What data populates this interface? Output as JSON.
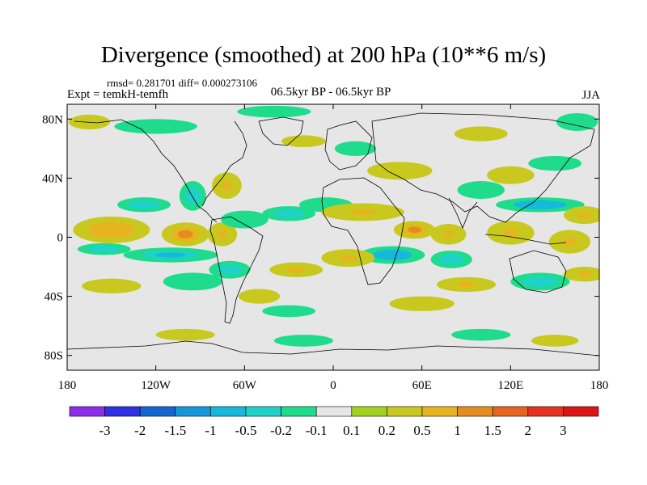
{
  "chart_data": {
    "type": "heatmap",
    "title": "Divergence (smoothed) at 200 hPa (10**6 m/s)",
    "stats_text": "rmsd= 0.281701  diff= 0.000273106",
    "experiment": "Expt = temkH-temfh",
    "period": "06.5kyr BP - 06.5kyr BP",
    "season": "JJA",
    "x_range": [
      -180,
      180
    ],
    "y_range": [
      -90,
      90
    ],
    "x_ticks": [
      {
        "value": -180,
        "label": "180"
      },
      {
        "value": -120,
        "label": "120W"
      },
      {
        "value": -60,
        "label": "60W"
      },
      {
        "value": 0,
        "label": "0"
      },
      {
        "value": 60,
        "label": "60E"
      },
      {
        "value": 120,
        "label": "120E"
      },
      {
        "value": 180,
        "label": "180"
      }
    ],
    "y_ticks": [
      {
        "value": 80,
        "label": "80N"
      },
      {
        "value": 40,
        "label": "40N"
      },
      {
        "value": 0,
        "label": "0"
      },
      {
        "value": -40,
        "label": "40S"
      },
      {
        "value": -80,
        "label": "80S"
      }
    ],
    "colorbar": {
      "levels": [
        "-3",
        "-2",
        "-1.5",
        "-1",
        "-0.5",
        "-0.2",
        "-0.1",
        "0.1",
        "0.2",
        "0.5",
        "1",
        "1.5",
        "2",
        "3"
      ],
      "colors": [
        "#8c2ee8",
        "#2f2fe6",
        "#1464d2",
        "#1496dc",
        "#14b9dc",
        "#1ed2c8",
        "#1edc8c",
        "#e6e6e6",
        "#a0d21e",
        "#c8c81e",
        "#e6b41e",
        "#e68c1e",
        "#e6641e",
        "#e6321e",
        "#dc1414"
      ]
    },
    "features": [
      {
        "lon": -150,
        "lat": 5,
        "rx": 26,
        "ry": 9,
        "value": 0.9
      },
      {
        "lon": -100,
        "lat": 2,
        "rx": 16,
        "ry": 8,
        "value": 1.2
      },
      {
        "lon": -75,
        "lat": 2,
        "rx": 10,
        "ry": 8,
        "value": 0.7
      },
      {
        "lon": -110,
        "lat": -12,
        "rx": 32,
        "ry": 5,
        "value": -0.7
      },
      {
        "lon": -155,
        "lat": -8,
        "rx": 18,
        "ry": 4,
        "value": -0.4
      },
      {
        "lon": -128,
        "lat": 22,
        "rx": 18,
        "ry": 5,
        "value": -0.4
      },
      {
        "lon": -95,
        "lat": 28,
        "rx": 9,
        "ry": 10,
        "value": -0.4
      },
      {
        "lon": -72,
        "lat": 35,
        "rx": 10,
        "ry": 9,
        "value": 0.5
      },
      {
        "lon": -120,
        "lat": 75,
        "rx": 28,
        "ry": 5,
        "value": -0.3
      },
      {
        "lon": -40,
        "lat": 85,
        "rx": 25,
        "ry": 4,
        "value": -0.3
      },
      {
        "lon": -165,
        "lat": 78,
        "rx": 14,
        "ry": 5,
        "value": 0.3
      },
      {
        "lon": -20,
        "lat": 65,
        "rx": 15,
        "ry": 4,
        "value": 0.3
      },
      {
        "lon": -60,
        "lat": 12,
        "rx": 16,
        "ry": 6,
        "value": -0.3
      },
      {
        "lon": -30,
        "lat": 16,
        "rx": 18,
        "ry": 5,
        "value": -0.4
      },
      {
        "lon": -5,
        "lat": 22,
        "rx": 18,
        "ry": 5,
        "value": -0.3
      },
      {
        "lon": 20,
        "lat": 17,
        "rx": 28,
        "ry": 6,
        "value": 0.6
      },
      {
        "lon": 55,
        "lat": 5,
        "rx": 14,
        "ry": 6,
        "value": 1.3
      },
      {
        "lon": 78,
        "lat": 2,
        "rx": 12,
        "ry": 7,
        "value": 0.7
      },
      {
        "lon": 40,
        "lat": -12,
        "rx": 22,
        "ry": 6,
        "value": -0.8
      },
      {
        "lon": 80,
        "lat": -15,
        "rx": 14,
        "ry": 6,
        "value": -0.5
      },
      {
        "lon": 10,
        "lat": -14,
        "rx": 18,
        "ry": 6,
        "value": 0.5
      },
      {
        "lon": -25,
        "lat": -22,
        "rx": 18,
        "ry": 5,
        "value": 0.5
      },
      {
        "lon": -70,
        "lat": -22,
        "rx": 14,
        "ry": 6,
        "value": -0.4
      },
      {
        "lon": -95,
        "lat": -30,
        "rx": 20,
        "ry": 6,
        "value": -0.3
      },
      {
        "lon": 140,
        "lat": 22,
        "rx": 30,
        "ry": 5,
        "value": -0.8
      },
      {
        "lon": 170,
        "lat": 15,
        "rx": 14,
        "ry": 6,
        "value": 0.5
      },
      {
        "lon": 120,
        "lat": 3,
        "rx": 16,
        "ry": 8,
        "value": 0.7
      },
      {
        "lon": 160,
        "lat": -3,
        "rx": 14,
        "ry": 8,
        "value": 0.5
      },
      {
        "lon": 150,
        "lat": 50,
        "rx": 18,
        "ry": 5,
        "value": -0.3
      },
      {
        "lon": 120,
        "lat": 42,
        "rx": 16,
        "ry": 6,
        "value": 0.3
      },
      {
        "lon": 100,
        "lat": 32,
        "rx": 16,
        "ry": 6,
        "value": -0.3
      },
      {
        "lon": 45,
        "lat": 45,
        "rx": 22,
        "ry": 6,
        "value": 0.3
      },
      {
        "lon": 15,
        "lat": 60,
        "rx": 14,
        "ry": 5,
        "value": -0.3
      },
      {
        "lon": 100,
        "lat": 70,
        "rx": 18,
        "ry": 5,
        "value": 0.3
      },
      {
        "lon": 165,
        "lat": 78,
        "rx": 14,
        "ry": 6,
        "value": -0.3
      },
      {
        "lon": 90,
        "lat": -32,
        "rx": 20,
        "ry": 5,
        "value": 0.5
      },
      {
        "lon": 140,
        "lat": -30,
        "rx": 20,
        "ry": 6,
        "value": -0.4
      },
      {
        "lon": 170,
        "lat": -25,
        "rx": 14,
        "ry": 5,
        "value": 0.5
      },
      {
        "lon": -150,
        "lat": -33,
        "rx": 20,
        "ry": 5,
        "value": 0.3
      },
      {
        "lon": -50,
        "lat": -40,
        "rx": 14,
        "ry": 5,
        "value": 0.3
      },
      {
        "lon": -30,
        "lat": -50,
        "rx": 18,
        "ry": 4,
        "value": -0.3
      },
      {
        "lon": 60,
        "lat": -45,
        "rx": 22,
        "ry": 5,
        "value": 0.3
      },
      {
        "lon": -100,
        "lat": -66,
        "rx": 20,
        "ry": 4,
        "value": 0.3
      },
      {
        "lon": -20,
        "lat": -70,
        "rx": 20,
        "ry": 4,
        "value": -0.3
      },
      {
        "lon": 100,
        "lat": -66,
        "rx": 20,
        "ry": 4,
        "value": -0.3
      },
      {
        "lon": 150,
        "lat": -70,
        "rx": 16,
        "ry": 4,
        "value": 0.3
      }
    ]
  }
}
